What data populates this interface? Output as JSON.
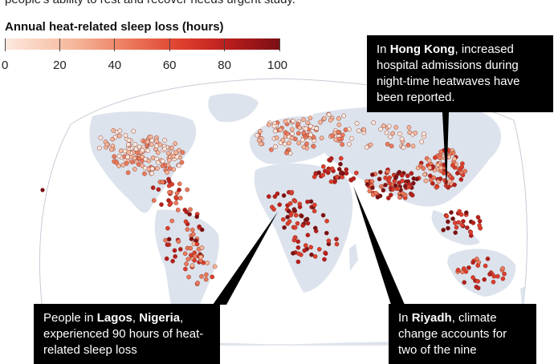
{
  "intro_text": "people's ability to rest and recover needs urgent study.",
  "legend": {
    "title": "Annual heat-related sleep loss (hours)",
    "ticks": [
      "0",
      "20",
      "40",
      "60",
      "80",
      "100"
    ],
    "colors": [
      "#fde9df",
      "#f6b89d",
      "#ec7a5c",
      "#de3d2c",
      "#b81d1d",
      "#7a0f14"
    ]
  },
  "map": {
    "land_color": "#dde3ec",
    "ocean_color": "#ffffff"
  },
  "callouts": {
    "hong_kong": {
      "pre": "In ",
      "place": "Hong Kong",
      "post": ", increased hospital admissions during night-time heatwaves have been reported."
    },
    "lagos": {
      "pre": "People in ",
      "place": "Lagos",
      "mid": ", ",
      "place2": "Nigeria",
      "post": ", experienced 90 hours of heat-related sleep loss"
    },
    "riyadh": {
      "pre": "In ",
      "place": "Riyadh",
      "post": ", climate change accounts for two of the nine"
    }
  }
}
